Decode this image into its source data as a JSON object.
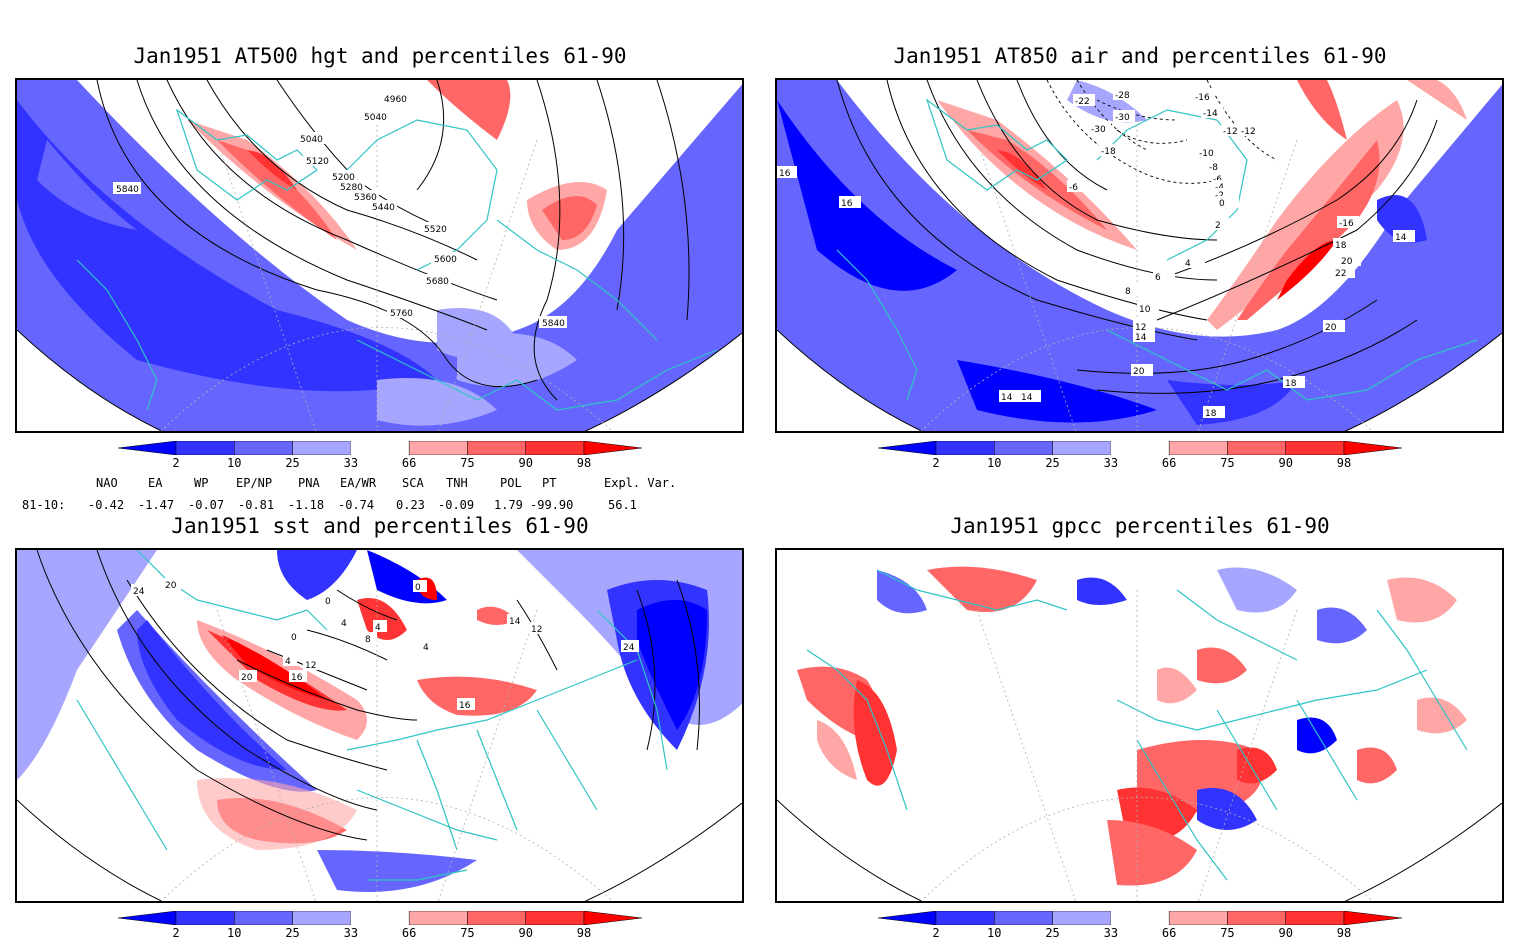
{
  "panels": [
    {
      "title": "Jan1951 AT500 hgt and percentiles 61-90"
    },
    {
      "title": "Jan1951 AT850 air and percentiles 61-90"
    },
    {
      "title": "Jan1951 sst and percentiles 61-90"
    },
    {
      "title": "Jan1951 gpcc percentiles 61-90"
    }
  ],
  "colorbar": {
    "ticks": [
      "2",
      "10",
      "25",
      "33",
      "66",
      "75",
      "90",
      "98"
    ],
    "colors": {
      "below_2": "#0000ff",
      "c2_10": "#3333ff",
      "c10_25": "#6666ff",
      "c25_33": "#a6a6ff",
      "c33_66": "#ffffff",
      "c66_75": "#ffa6a6",
      "c75_90": "#ff6666",
      "c90_98": "#ff3333",
      "above_98": "#ff0000"
    }
  },
  "indices": {
    "header": [
      "NAO",
      "EA",
      "WP",
      "EP/NP",
      "PNA",
      "EA/WR",
      "SCA",
      "TNH",
      "POL",
      "PT",
      "Expl. Var."
    ],
    "row_label": "81-10:",
    "values": [
      "-0.42",
      "-1.47",
      "-0.07",
      "-0.81",
      "-1.18",
      "-0.74",
      "0.23",
      "-0.09",
      "1.79",
      "-99.90",
      "56.1"
    ]
  },
  "contour_labels": {
    "hgt": [
      "4960",
      "5040",
      "5040",
      "5120",
      "5200",
      "5280",
      "5360",
      "5440",
      "5520",
      "5600",
      "5680",
      "5760",
      "5840",
      "5840"
    ],
    "air": [
      "-22",
      "-28",
      "-30",
      "-16",
      "-14",
      "-12",
      "-10",
      "-8",
      "-6",
      "-4",
      "-2",
      "0",
      "2",
      "4",
      "6",
      "8",
      "10",
      "12",
      "14",
      "14",
      "14",
      "16",
      "16",
      "18",
      "18",
      "18",
      "20",
      "20",
      "20",
      "22",
      "14",
      "-16",
      "-30",
      "-12",
      "-18",
      "-6"
    ],
    "sst": [
      "24",
      "20",
      "0",
      "0",
      "4",
      "8",
      "4",
      "0",
      "4",
      "12",
      "16",
      "20",
      "4",
      "16",
      "12",
      "24",
      "14"
    ]
  },
  "colors": {
    "coastline": "#2ec4c4",
    "grid": "#b0b0b0",
    "contour": "#000000"
  }
}
